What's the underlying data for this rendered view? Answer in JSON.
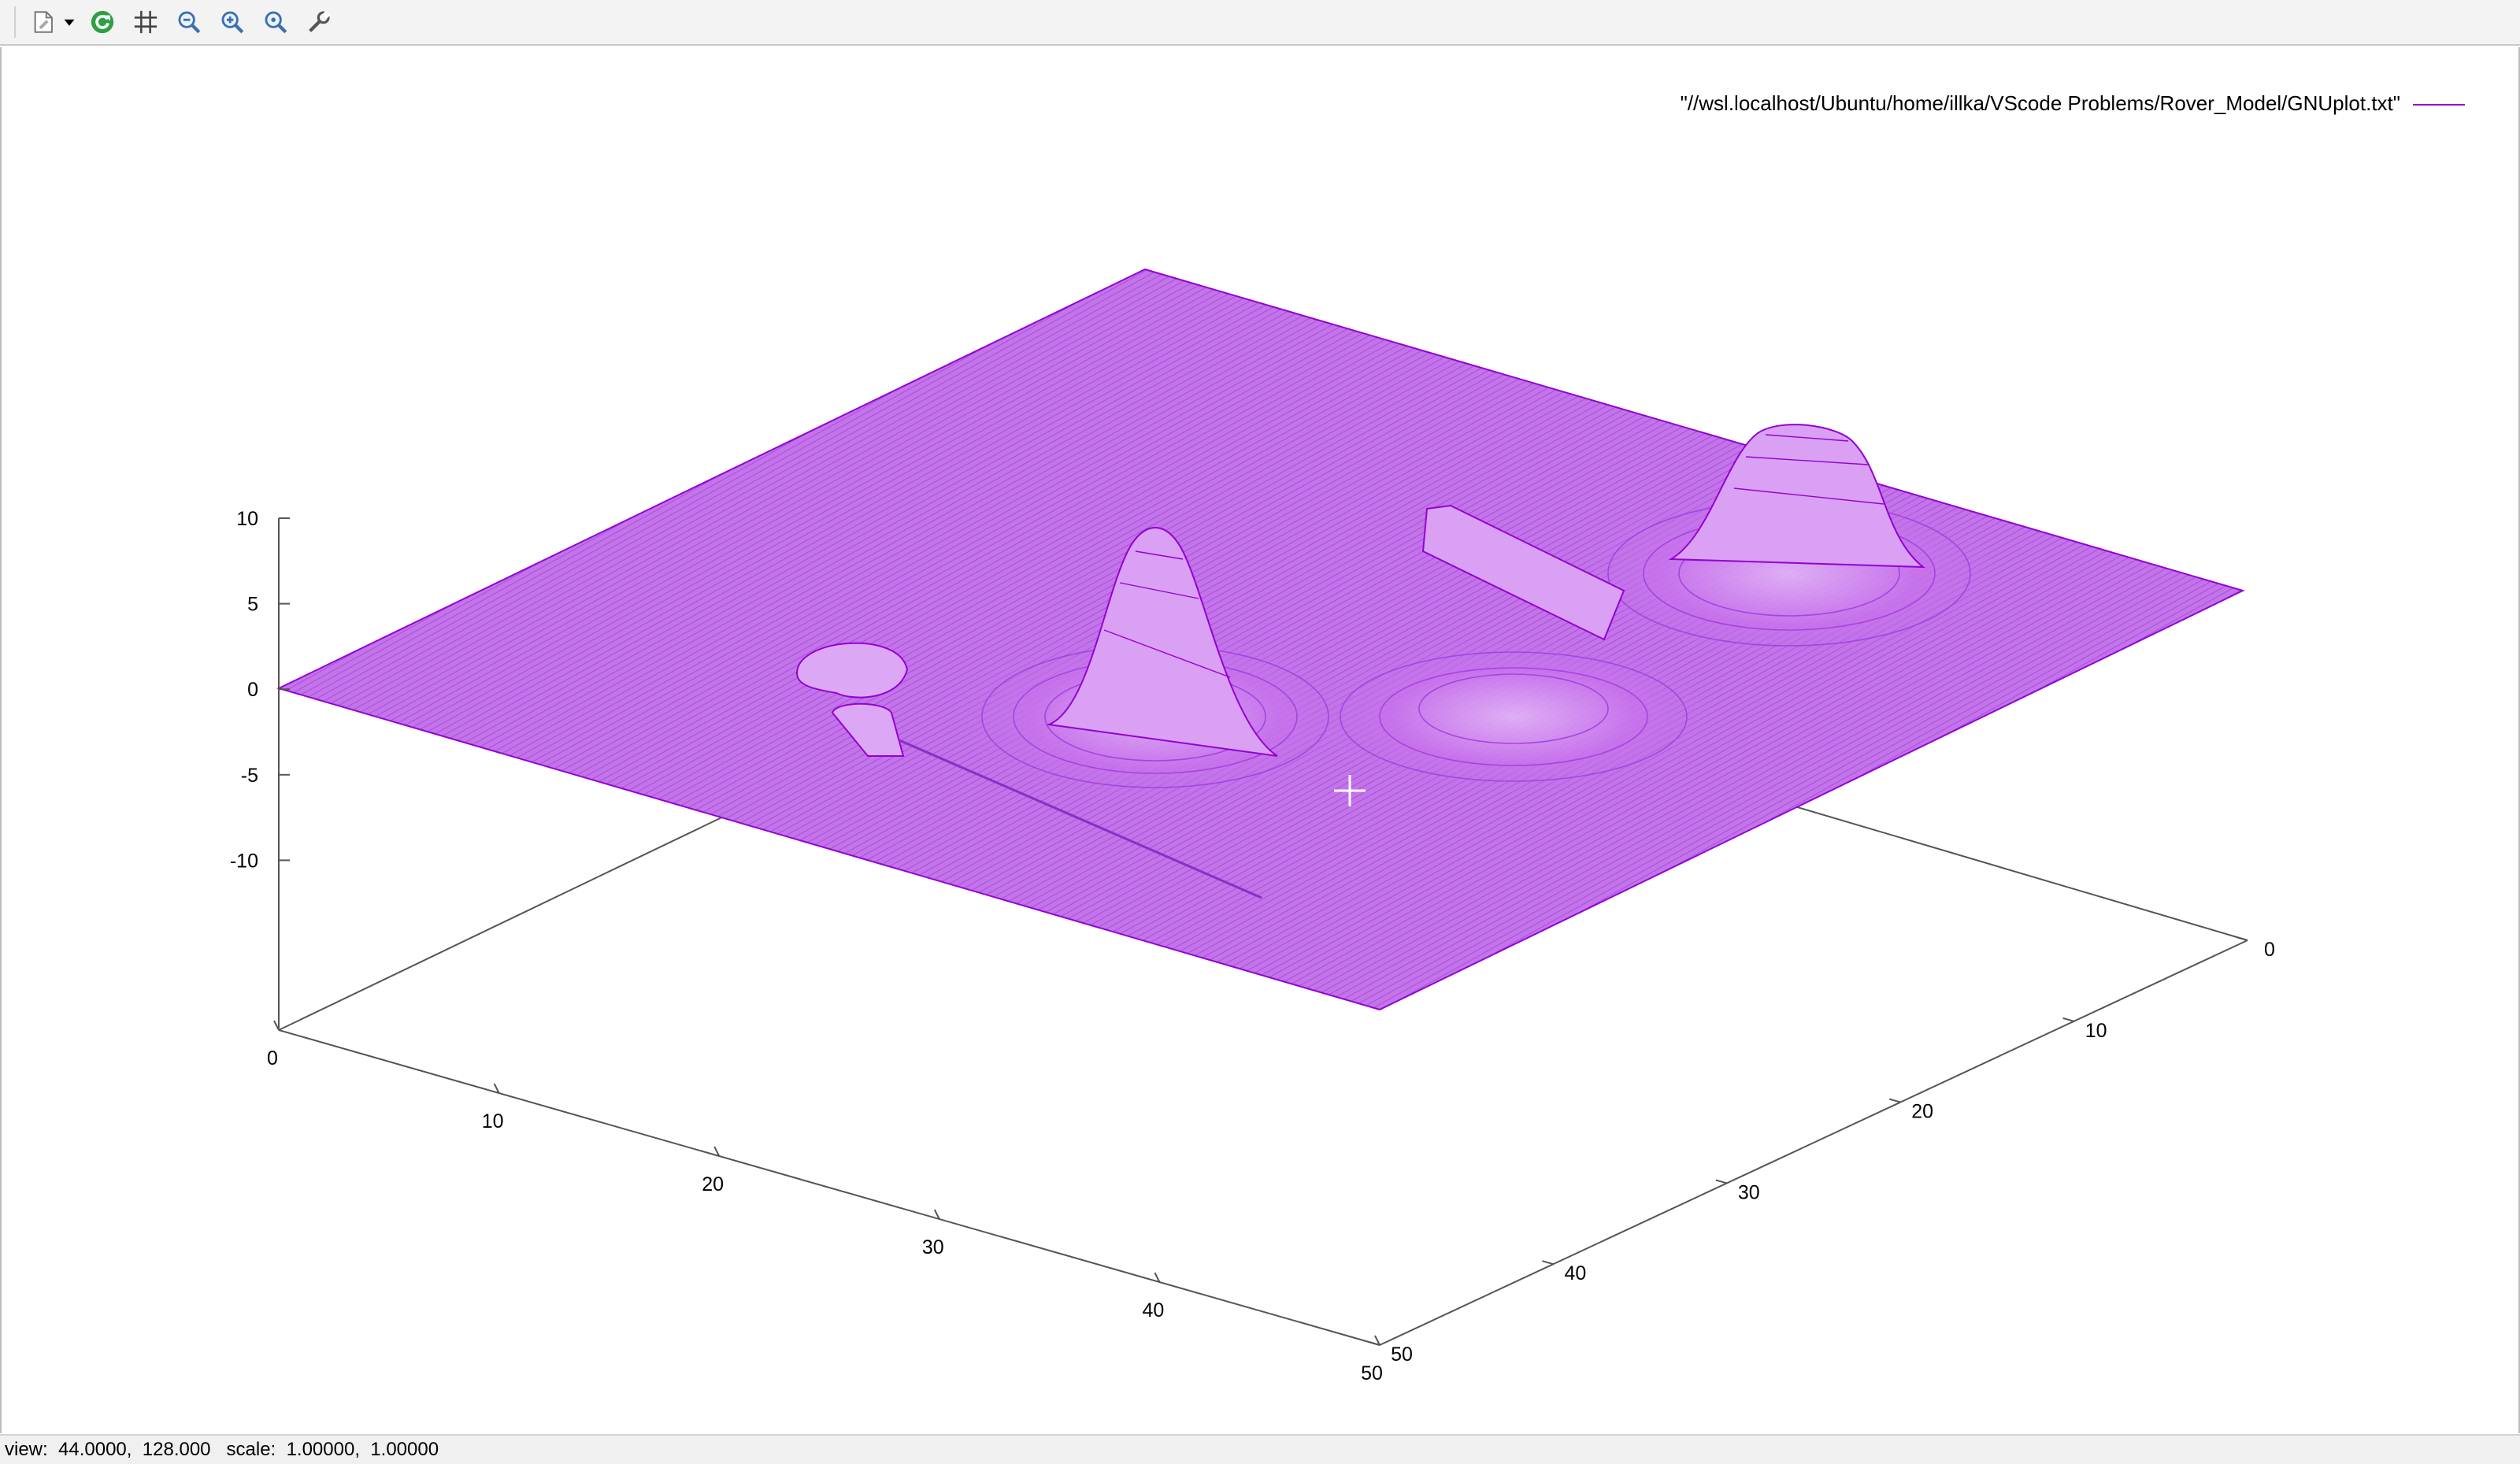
{
  "toolbar": {
    "icons": [
      "export-icon",
      "dropdown-arrow-icon",
      "replot-icon",
      "grid-icon",
      "zoom-prev-icon",
      "zoom-next-icon",
      "zoom-unzoom-icon",
      "settings-icon"
    ]
  },
  "plot": {
    "legend": "\"//wsl.localhost/Ubuntu/home/illka/VScode Problems/Rover_Model/GNUplot.txt\"",
    "series_color": "#9400d3",
    "surface_color": "#c06ae6"
  },
  "chart_data": {
    "type": "surface",
    "title": "",
    "series": [
      {
        "name": "\"//wsl.localhost/Ubuntu/home/illka/VScode Problems/Rover_Model/GNUplot.txt\""
      }
    ],
    "z_ticks": [
      "10",
      "5",
      "0",
      "-5",
      "-10"
    ],
    "x_ticks": [
      "0",
      "10",
      "20",
      "30",
      "40",
      "50"
    ],
    "y_ticks": [
      "0",
      "10",
      "20",
      "30",
      "40",
      "50"
    ],
    "zrange": [
      -15,
      10
    ],
    "xrange": [
      0,
      50
    ],
    "yrange": [
      0,
      50
    ]
  },
  "status": {
    "text": "view:  44.0000,  128.000   scale:  1.00000,  1.00000"
  }
}
